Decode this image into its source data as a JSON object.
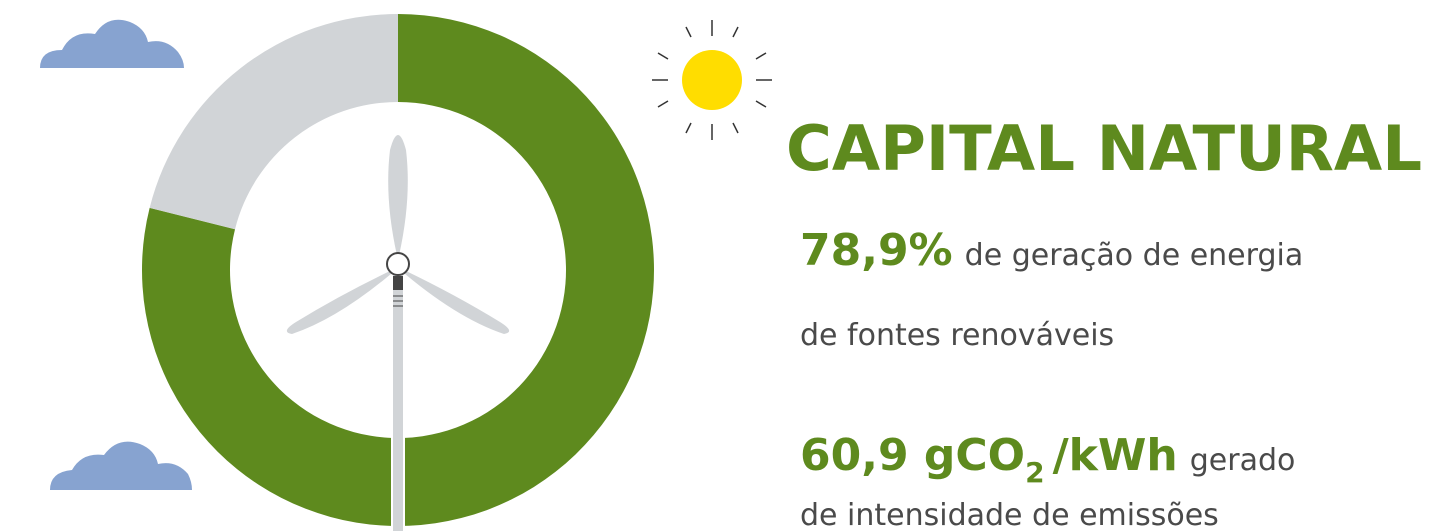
{
  "chart_data": {
    "type": "donut",
    "values": [
      78.9,
      21.1
    ],
    "colors": [
      "#5e8a1e",
      "#d1d4d7"
    ]
  },
  "title": "CAPITAL NATURAL",
  "stats": [
    {
      "value": "78,9%",
      "text": "de geração de energia",
      "line2": "de fontes renováveis"
    },
    {
      "value": [
        "60,9 gCO",
        "2",
        "/kWh"
      ],
      "text": "gerado",
      "line2": "de intensidade de emissões"
    }
  ]
}
